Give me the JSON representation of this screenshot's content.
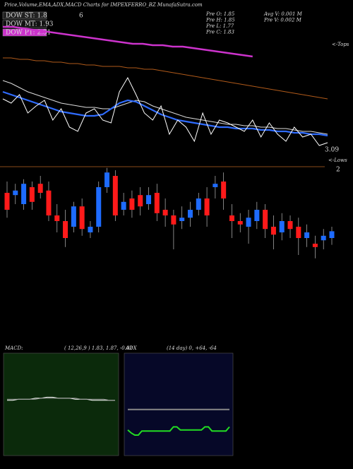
{
  "chart_data": {
    "type": "candlestick",
    "title": "Price,Volume,EMA,ADX,MACD Charts for IMPEXFERRO_BZ MunafaSutra.com",
    "legend": [
      {
        "label": "DOW ST: 1.8",
        "color": "#222222"
      },
      {
        "label": "DOW MT: 1.93",
        "color": "#111111"
      },
      {
        "label": "DOW PT: 2.31",
        "color": "#cc33cc"
      }
    ],
    "legend_note": "6",
    "info": [
      "Pre  O: 1.85",
      "Pre  H: 1.85",
      "Pre  L: 1.77",
      "Pre  C: 1.83",
      "Avg V: 0.001 M",
      "Pre  V: 0.002 M"
    ],
    "tops_label": "<-Tops",
    "lows_label": "<-Lows",
    "price_labels": [
      "3.09",
      "2"
    ],
    "up_color": "#1e6bff",
    "down_color": "#ff1a1a",
    "ylim": [
      1.5,
      2.5
    ],
    "open": [
      2.2,
      2.18,
      2.1,
      2.25,
      2.28,
      2.22,
      2.0,
      1.95,
      1.9,
      2.08,
      1.85,
      1.9,
      2.25,
      2.35,
      2.05,
      2.15,
      2.18,
      2.1,
      2.2,
      2.05,
      2.0,
      1.95,
      1.98,
      2.05,
      2.15,
      2.25,
      2.3,
      2.0,
      1.95,
      1.9,
      1.95,
      2.05,
      1.9,
      1.85,
      1.95,
      1.9,
      1.8,
      1.75,
      1.78,
      1.8
    ],
    "high": [
      2.3,
      2.28,
      2.32,
      2.3,
      2.35,
      2.3,
      2.1,
      2.05,
      2.12,
      2.15,
      1.95,
      2.3,
      2.42,
      2.4,
      2.2,
      2.22,
      2.25,
      2.25,
      2.28,
      2.15,
      2.05,
      2.08,
      2.12,
      2.2,
      2.25,
      2.35,
      2.38,
      2.1,
      2.02,
      2.05,
      2.12,
      2.1,
      2.0,
      2.02,
      2.0,
      1.98,
      1.92,
      1.82,
      1.88,
      1.9
    ],
    "low": [
      1.98,
      2.1,
      2.05,
      2.05,
      2.15,
      1.95,
      1.85,
      1.72,
      1.85,
      1.82,
      1.8,
      1.85,
      2.2,
      1.95,
      2.0,
      1.98,
      2.0,
      2.05,
      1.95,
      1.9,
      1.7,
      1.88,
      1.9,
      2.0,
      1.9,
      2.15,
      2.05,
      1.8,
      1.85,
      1.75,
      1.88,
      1.8,
      1.7,
      1.78,
      1.8,
      1.65,
      1.72,
      1.62,
      1.7,
      1.74
    ],
    "close": [
      2.05,
      2.22,
      2.28,
      2.12,
      2.2,
      2.0,
      1.95,
      1.8,
      2.08,
      1.88,
      1.9,
      2.25,
      2.38,
      2.0,
      2.12,
      2.05,
      2.08,
      2.18,
      2.02,
      2.0,
      1.92,
      1.98,
      2.05,
      2.15,
      2.0,
      2.28,
      2.15,
      1.95,
      1.92,
      1.98,
      2.05,
      1.88,
      1.83,
      1.95,
      1.88,
      1.8,
      1.85,
      1.72,
      1.82,
      1.86
    ],
    "overlay_ylim": [
      0,
      100
    ],
    "overlays": [
      {
        "color": "#b05a1a",
        "values": [
          74,
          74,
          73,
          73,
          72,
          72,
          71,
          71,
          70,
          70,
          69,
          69,
          68,
          68,
          68,
          67,
          67,
          66,
          66,
          65,
          64,
          63,
          62,
          61,
          60,
          59,
          58,
          57,
          56,
          55,
          54,
          53,
          52,
          51,
          50,
          49,
          48,
          47,
          46,
          45
        ]
      },
      {
        "color": "#dddddd",
        "values": [
          58,
          56,
          53,
          50,
          48,
          46,
          44,
          42,
          41,
          40,
          39,
          39,
          38,
          38,
          40,
          42,
          44,
          43,
          40,
          38,
          36,
          34,
          32,
          31,
          30,
          29,
          28,
          27,
          27,
          26,
          26,
          25,
          25,
          24,
          24,
          23,
          22,
          22,
          21,
          20
        ]
      },
      {
        "color": "#2f6cff",
        "values": [
          50,
          48,
          46,
          44,
          42,
          40,
          38,
          36,
          35,
          34,
          33,
          33,
          34,
          38,
          42,
          44,
          43,
          40,
          37,
          34,
          32,
          30,
          29,
          28,
          27,
          26,
          25,
          25,
          24,
          24,
          24,
          23,
          23,
          22,
          22,
          21,
          21,
          20,
          20,
          19
        ]
      },
      {
        "color": "#ffffff",
        "values": [
          45,
          42,
          48,
          35,
          40,
          44,
          30,
          38,
          25,
          22,
          35,
          38,
          30,
          28,
          50,
          60,
          48,
          35,
          30,
          40,
          20,
          30,
          25,
          15,
          35,
          20,
          30,
          28,
          25,
          22,
          30,
          18,
          28,
          20,
          15,
          25,
          18,
          20,
          12,
          14
        ]
      },
      {
        "color": "#cc33cc",
        "values": [
          96,
          96,
          95,
          94,
          93,
          92,
          91,
          90,
          89,
          88,
          87,
          86,
          85,
          84,
          84,
          83,
          83,
          82,
          82,
          81,
          80,
          79,
          78,
          77,
          76,
          75
        ]
      }
    ],
    "macd": {
      "label": "MACD:",
      "params": "( 12,26,9 ) 1.83,  1.87,  -0.02",
      "ylim": [
        -0.5,
        0.5
      ],
      "background": "#0b2a0b",
      "series": [
        {
          "color": "#ffffff",
          "values": [
            0.04,
            0.04,
            0.05,
            0.05,
            0.05,
            0.06,
            0.06,
            0.07,
            0.07,
            0.06,
            0.06,
            0.06,
            0.05,
            0.05,
            0.05,
            0.04,
            0.04,
            0.04,
            0.04,
            0.04
          ]
        },
        {
          "color": "#999999",
          "values": [
            0.05,
            0.05,
            0.05,
            0.05,
            0.05,
            0.05,
            0.06,
            0.06,
            0.06,
            0.06,
            0.06,
            0.06,
            0.06,
            0.05,
            0.05,
            0.05,
            0.05,
            0.05,
            0.04,
            0.04
          ]
        }
      ]
    },
    "adx": {
      "label": "ADX",
      "params": "(14  day) 0,  +64,  -64",
      "ylim": [
        0,
        100
      ],
      "background": "#060828",
      "series": [
        {
          "color": "#888888",
          "values": [
            45,
            45,
            45,
            45,
            45,
            45,
            45,
            45,
            45,
            45,
            45,
            45,
            45,
            45,
            45,
            45,
            45,
            45,
            45,
            45,
            45,
            45,
            45,
            45,
            45,
            45,
            45,
            45,
            45,
            45
          ]
        },
        {
          "color": "#22dd22",
          "values": [
            25,
            22,
            20,
            20,
            24,
            24,
            24,
            24,
            24,
            24,
            24,
            24,
            24,
            28,
            28,
            25,
            25,
            25,
            25,
            25,
            25,
            25,
            28,
            28,
            24,
            24,
            24,
            24,
            24,
            28
          ]
        }
      ]
    }
  }
}
